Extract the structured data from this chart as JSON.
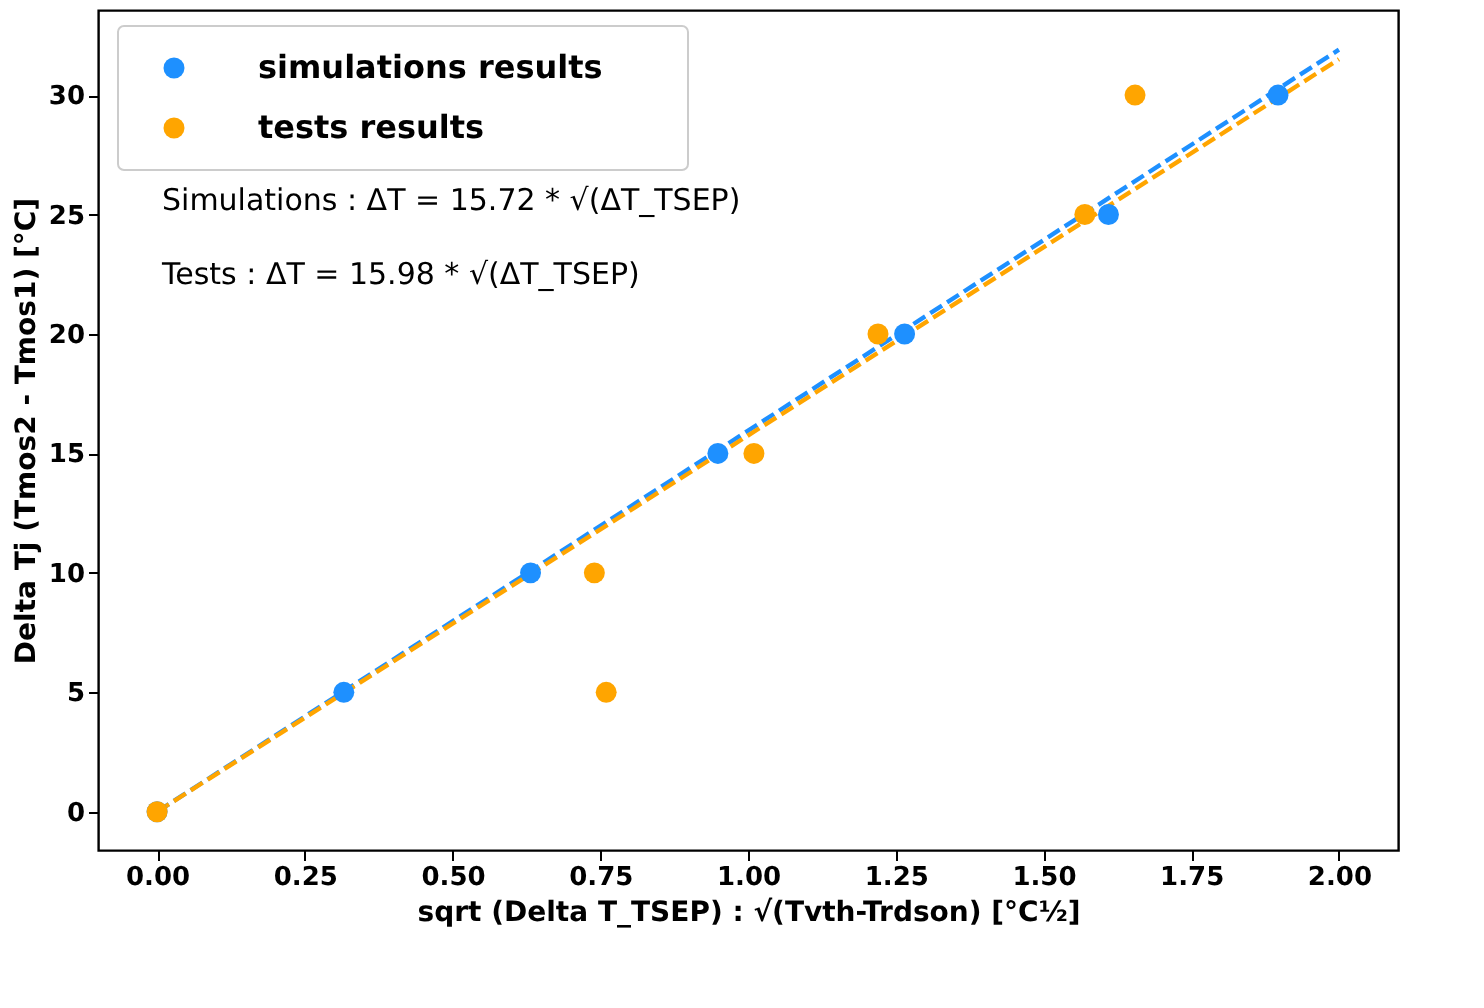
{
  "chart_data": {
    "type": "scatter",
    "xlabel": "sqrt (Delta T_TSEP) : √(Tvth-Trdson) [°C½]",
    "ylabel": "Delta Tj (Tmos2 - Tmos1) [°C]",
    "xlim": [
      -0.1,
      2.1
    ],
    "ylim": [
      -1.6,
      33.56
    ],
    "xticks": [
      {
        "value": 0,
        "label": "0.00"
      },
      {
        "value": 0.25,
        "label": "0.25"
      },
      {
        "value": 0.5,
        "label": "0.50"
      },
      {
        "value": 0.75,
        "label": "0.75"
      },
      {
        "value": 1,
        "label": "1.00"
      },
      {
        "value": 1.25,
        "label": "1.25"
      },
      {
        "value": 1.5,
        "label": "1.50"
      },
      {
        "value": 1.75,
        "label": "1.75"
      },
      {
        "value": 2,
        "label": "2.00"
      }
    ],
    "yticks": [
      0,
      5,
      10,
      15,
      20,
      25,
      30
    ],
    "grid": false,
    "legend": "top left",
    "marker": "circle",
    "annotations": [
      "Simulations : ΔT = 15.72 * √(ΔT_TSEP)",
      "Tests : ΔT = 15.98 * √(ΔT_TSEP)"
    ],
    "series": [
      {
        "name": "simulations results",
        "color": "#1e90ff",
        "x": [
          0,
          0.316,
          0.632,
          0.949,
          1.265,
          1.61,
          1.897
        ],
        "values": [
          0,
          5,
          10,
          15,
          20,
          25,
          30
        ]
      },
      {
        "name": "tests results",
        "color": "#ffa500",
        "x": [
          0,
          0.76,
          0.74,
          1.01,
          1.22,
          1.57,
          1.655
        ],
        "values": [
          0,
          5,
          10,
          15,
          20,
          25,
          30
        ]
      },
      {
        "type": "line",
        "marker": "none",
        "line_style": "dashed",
        "color": "#1e90ff",
        "x": [
          0,
          2
        ],
        "values": [
          0,
          31.9
        ]
      },
      {
        "type": "line",
        "marker": "none",
        "line_style": "dashed",
        "color": "#ffa500",
        "x": [
          0,
          2
        ],
        "values": [
          0,
          31.5
        ]
      }
    ]
  }
}
